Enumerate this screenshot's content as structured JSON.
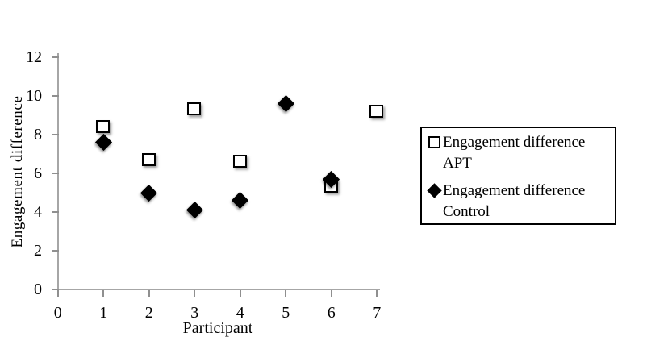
{
  "chart_data": {
    "type": "scatter",
    "title": "",
    "xlabel": "Participant",
    "ylabel": "Engagement difference",
    "xlim": [
      0,
      7
    ],
    "ylim": [
      0,
      12
    ],
    "x_ticks": [
      0,
      1,
      2,
      3,
      4,
      5,
      6,
      7
    ],
    "y_ticks": [
      0,
      2,
      4,
      6,
      8,
      10,
      12
    ],
    "grid": false,
    "legend_position": "right",
    "series": [
      {
        "name": "Engagement difference APT",
        "marker": "open-square",
        "fill": "#ffffff",
        "stroke": "#000000",
        "points": [
          {
            "x": 1,
            "y": 8.4
          },
          {
            "x": 2,
            "y": 6.7
          },
          {
            "x": 3,
            "y": 9.3
          },
          {
            "x": 4,
            "y": 6.6
          },
          {
            "x": 6,
            "y": 5.3
          },
          {
            "x": 7,
            "y": 9.2
          }
        ]
      },
      {
        "name": "Engagement difference Control",
        "marker": "filled-diamond",
        "fill": "#000000",
        "stroke": "#000000",
        "points": [
          {
            "x": 1,
            "y": 7.6
          },
          {
            "x": 2,
            "y": 5.0
          },
          {
            "x": 3,
            "y": 4.1
          },
          {
            "x": 4,
            "y": 4.6
          },
          {
            "x": 5,
            "y": 9.6
          },
          {
            "x": 6,
            "y": 5.7
          }
        ]
      }
    ]
  },
  "legend": {
    "items": [
      {
        "label": "Engagement difference APT",
        "marker": "open-square"
      },
      {
        "label": "Engagement difference Control",
        "marker": "filled-diamond"
      }
    ]
  },
  "colors": {
    "axis_line": "#a6a6a6",
    "tick": "#8f8f8f",
    "text": "#000000",
    "background": "#ffffff"
  }
}
